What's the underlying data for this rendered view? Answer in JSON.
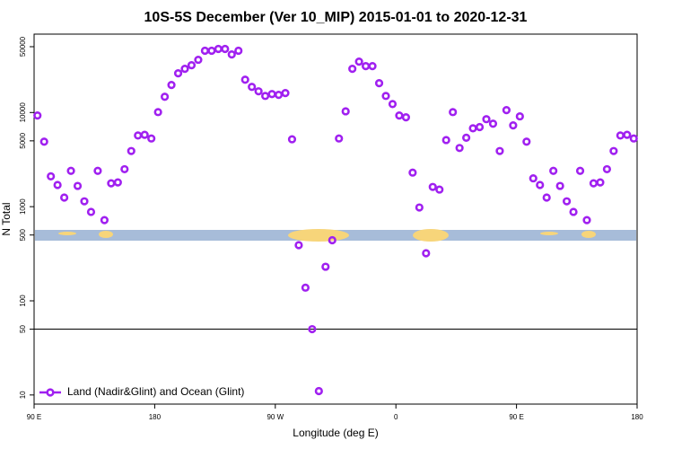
{
  "chart_data": {
    "type": "scatter",
    "title": "10S-5S December (Ver 10_MIP)   2015-01-01 to 2020-12-31",
    "x_label": "Longitude (deg E)",
    "y_label": "N Total",
    "log_y": true,
    "xlim": [
      90,
      540
    ],
    "xticks": [
      {
        "value": 90,
        "label": "90 E"
      },
      180,
      {
        "value": 270,
        "label": "90 W"
      },
      {
        "value": 360,
        "label": "0"
      },
      {
        "value": 450,
        "label": "90 E"
      },
      {
        "value": 540,
        "label": "180"
      }
    ],
    "ylim": [
      8,
      68000
    ],
    "yticks": [
      10,
      50,
      100,
      500,
      1000,
      5000,
      10000,
      50000
    ],
    "hlines": [
      50
    ],
    "legend": "bottom-left",
    "x": [
      92.5,
      97.5,
      102.5,
      107.5,
      112.5,
      117.5,
      122.5,
      127.5,
      132.5,
      137.5,
      142.5,
      147.5,
      152.5,
      157.5,
      162.5,
      167.5,
      172.5,
      177.5,
      182.5,
      187.5,
      192.5,
      197.5,
      202.5,
      207.5,
      212.5,
      217.5,
      222.5,
      227.5,
      232.5,
      237.5,
      242.5,
      247.5,
      252.5,
      257.5,
      262.5,
      267.5,
      272.5,
      277.5,
      282.5,
      287.5,
      292.5,
      297.5,
      302.5,
      307.5,
      312.5,
      317.5,
      322.5,
      327.5,
      332.5,
      337.5,
      342.5,
      347.5,
      352.5,
      357.5,
      362.5,
      367.5,
      372.5,
      377.5,
      382.5,
      387.5,
      392.5,
      397.5,
      402.5,
      407.5,
      412.5,
      417.5,
      422.5,
      427.5,
      432.5,
      437.5,
      442.5,
      447.5,
      452.5,
      457.5,
      462.5,
      467.5,
      472.5,
      477.5,
      482.5,
      487.5,
      492.5,
      497.5,
      502.5,
      507.5,
      512.5,
      517.5,
      522.5,
      527.5,
      532.5,
      537.5
    ],
    "series": [
      {
        "name": "Land (Nadir&Glint) and Ocean (Glint)",
        "color": "#a020f0",
        "values": [
          9300,
          4900,
          2100,
          1700,
          1250,
          2400,
          1660,
          1140,
          880,
          2400,
          720,
          1770,
          1810,
          2500,
          3900,
          5700,
          5800,
          5300,
          10100,
          14700,
          19600,
          26100,
          29100,
          31800,
          36300,
          45300,
          45300,
          47300,
          47300,
          41400,
          45300,
          22300,
          18700,
          16800,
          15000,
          15700,
          15400,
          16100,
          5200,
          390,
          138,
          50,
          11,
          230,
          440,
          5300,
          10300,
          29100,
          34700,
          31100,
          31100,
          20500,
          15000,
          12300,
          9300,
          8900,
          2300,
          980,
          320,
          1620,
          1520,
          5100,
          10100,
          4200,
          5400,
          6800,
          7000,
          8500,
          7600,
          3900,
          10600,
          7300,
          9100,
          4900,
          2000,
          1700,
          1250,
          2400,
          1660,
          1140,
          880,
          2400,
          720,
          1770,
          1810,
          2500,
          3900,
          5700,
          5800,
          5300
        ]
      }
    ]
  }
}
